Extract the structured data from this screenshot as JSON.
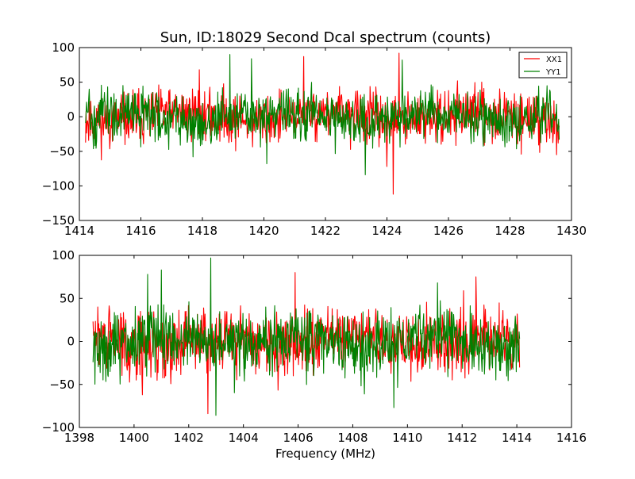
{
  "figure": {
    "title": "Sun, ID:18029 Second Dcal spectrum (counts)",
    "xlabel": "Frequency (MHz)"
  },
  "legend": {
    "items": [
      {
        "label": "XX1",
        "color": "#ff0000"
      },
      {
        "label": "YY1",
        "color": "#008000"
      }
    ],
    "placement": "top-right"
  },
  "chart_data": [
    {
      "type": "line",
      "title": "Sun, ID:18029 Second Dcal spectrum (counts)",
      "xlabel": "",
      "ylabel": "",
      "xlim": [
        1414,
        1430
      ],
      "ylim": [
        -150,
        100
      ],
      "xticks": [
        "1414",
        "1416",
        "1418",
        "1420",
        "1422",
        "1424",
        "1426",
        "1428",
        "1430"
      ],
      "yticks": [
        "−150",
        "−100",
        "−50",
        "0",
        "50",
        "100"
      ],
      "grid": false,
      "legend": "top-right",
      "x_range_of_data": [
        1414.2,
        1429.6
      ],
      "series": [
        {
          "name": "XX1",
          "color": "#ff0000",
          "noise_amplitude_approx": 30,
          "notable_points": [
            {
              "x": 1421.3,
              "y": 87
            },
            {
              "x": 1424.4,
              "y": 92
            },
            {
              "x": 1424.2,
              "y": -112
            },
            {
              "x": 1424.0,
              "y": -72
            },
            {
              "x": 1417.9,
              "y": 68
            },
            {
              "x": 1426.3,
              "y": 52
            }
          ]
        },
        {
          "name": "YY1",
          "color": "#008000",
          "noise_amplitude_approx": 30,
          "notable_points": [
            {
              "x": 1418.9,
              "y": 90
            },
            {
              "x": 1419.6,
              "y": 84
            },
            {
              "x": 1423.3,
              "y": -84
            },
            {
              "x": 1424.5,
              "y": 82
            },
            {
              "x": 1420.1,
              "y": -68
            },
            {
              "x": 1417.7,
              "y": -58
            }
          ]
        }
      ]
    },
    {
      "type": "line",
      "title": "",
      "xlabel": "Frequency (MHz)",
      "ylabel": "",
      "xlim": [
        1398,
        1416
      ],
      "ylim": [
        -100,
        100
      ],
      "xticks": [
        "1398",
        "1400",
        "1402",
        "1404",
        "1406",
        "1408",
        "1410",
        "1412",
        "1414",
        "1416"
      ],
      "yticks": [
        "−100",
        "−50",
        "0",
        "50",
        "100"
      ],
      "grid": false,
      "x_range_of_data": [
        1398.5,
        1414.1
      ],
      "series": [
        {
          "name": "XX1",
          "color": "#ff0000",
          "noise_amplitude_approx": 30,
          "notable_points": [
            {
              "x": 1402.7,
              "y": -84
            },
            {
              "x": 1405.9,
              "y": 80
            },
            {
              "x": 1412.5,
              "y": 75
            },
            {
              "x": 1400.3,
              "y": -62
            }
          ]
        },
        {
          "name": "YY1",
          "color": "#008000",
          "noise_amplitude_approx": 30,
          "notable_points": [
            {
              "x": 1402.8,
              "y": 97
            },
            {
              "x": 1401.0,
              "y": 83
            },
            {
              "x": 1403.0,
              "y": -86
            },
            {
              "x": 1409.5,
              "y": -77
            },
            {
              "x": 1400.5,
              "y": 78
            },
            {
              "x": 1411.1,
              "y": 68
            }
          ]
        }
      ]
    }
  ]
}
